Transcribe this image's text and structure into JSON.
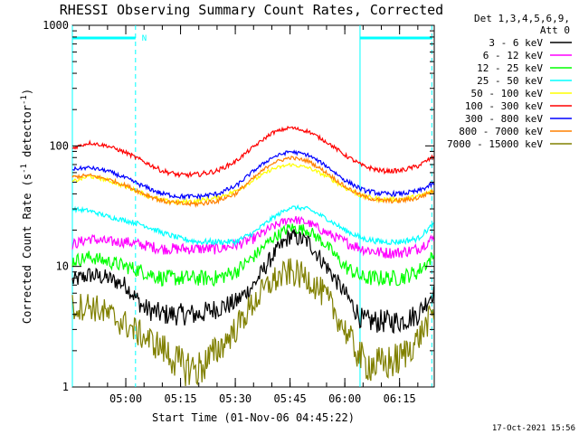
{
  "chart_data": {
    "type": "line",
    "title": "RHESSI Observing Summary Count Rates, Corrected",
    "xlabel": "Start Time (01-Nov-06 04:45:22)",
    "ylabel": "Corrected Count Rate (s^-1 detector^-1)",
    "y_scale": "log",
    "ylim": [
      1,
      1000
    ],
    "xlim": [
      "04:45:22",
      "06:24:30"
    ],
    "x_ticks": [
      "05:00",
      "05:15",
      "05:30",
      "05:45",
      "06:00",
      "06:15"
    ],
    "y_ticks": [
      "1",
      "10",
      "100",
      "1000"
    ],
    "legend_header": [
      "Det 1,3,4,5,6,9,",
      "Att 0"
    ],
    "legend_position": "right",
    "timestamp": "17-Oct-2021 15:56",
    "flags": {
      "night_label": "N",
      "segments": [
        [
          "04:45:22",
          "05:02:40"
        ],
        [
          "06:04:10",
          "06:24:00"
        ]
      ],
      "boundaries_dashed": [
        "05:02:40",
        "06:23:50"
      ],
      "boundaries_solid": [
        "04:45:22",
        "06:04:10"
      ],
      "color": "#00ffff"
    },
    "x": [
      "04:45",
      "04:50",
      "04:55",
      "05:00",
      "05:05",
      "05:10",
      "05:15",
      "05:20",
      "05:25",
      "05:30",
      "05:35",
      "05:40",
      "05:45",
      "05:50",
      "05:55",
      "06:00",
      "06:05",
      "06:10",
      "06:15",
      "06:20",
      "06:24"
    ],
    "series": [
      {
        "name": "3 - 6 keV",
        "color": "#000000",
        "values": [
          7.5,
          8.5,
          8,
          7,
          4.5,
          4,
          4,
          4,
          4.5,
          5,
          7,
          12,
          18,
          16,
          10,
          6,
          3.5,
          3.5,
          3.5,
          4,
          6
        ]
      },
      {
        "name": "6 - 12 keV",
        "color": "#ff00ff",
        "values": [
          15,
          17,
          16,
          16,
          15,
          14,
          14,
          14,
          14,
          15,
          17,
          21,
          25,
          23,
          19,
          16,
          14,
          13,
          13,
          14,
          17
        ]
      },
      {
        "name": "12 - 25 keV",
        "color": "#00ff00",
        "values": [
          11,
          12,
          11,
          10,
          9,
          8,
          8,
          8,
          8,
          9,
          12,
          17,
          21,
          20,
          15,
          10,
          8,
          8,
          8,
          9,
          12
        ]
      },
      {
        "name": "25 - 50 keV",
        "color": "#00ffff",
        "values": [
          30,
          29,
          26,
          24,
          22,
          19,
          17,
          16,
          16,
          16,
          19,
          25,
          31,
          30,
          25,
          20,
          17,
          16,
          16,
          17,
          22
        ]
      },
      {
        "name": "50 - 100 keV",
        "color": "#ffff00",
        "values": [
          50,
          56,
          52,
          46,
          40,
          35,
          34,
          35,
          37,
          42,
          52,
          64,
          70,
          66,
          56,
          45,
          38,
          36,
          36,
          38,
          42
        ]
      },
      {
        "name": "100 - 300 keV",
        "color": "#ff0000",
        "values": [
          95,
          106,
          100,
          88,
          74,
          62,
          57,
          58,
          62,
          74,
          98,
          128,
          142,
          132,
          108,
          84,
          68,
          62,
          62,
          68,
          80
        ]
      },
      {
        "name": "300 - 800 keV",
        "color": "#0000ff",
        "values": [
          64,
          66,
          62,
          54,
          46,
          40,
          38,
          38,
          40,
          46,
          62,
          80,
          90,
          84,
          68,
          52,
          43,
          40,
          40,
          42,
          48
        ]
      },
      {
        "name": "800 - 7000 keV",
        "color": "#ff8000",
        "values": [
          55,
          57,
          53,
          47,
          40,
          35,
          33,
          33,
          35,
          40,
          54,
          72,
          80,
          75,
          60,
          46,
          38,
          35,
          35,
          37,
          42
        ]
      },
      {
        "name": "7000 - 15000 keV",
        "color": "#808000",
        "values": [
          4.5,
          4.8,
          4,
          3.3,
          2.6,
          2.1,
          1.5,
          1.4,
          2,
          3,
          5,
          7.5,
          9,
          8,
          5.5,
          3,
          1.6,
          1.5,
          1.7,
          2.5,
          4
        ]
      }
    ]
  }
}
